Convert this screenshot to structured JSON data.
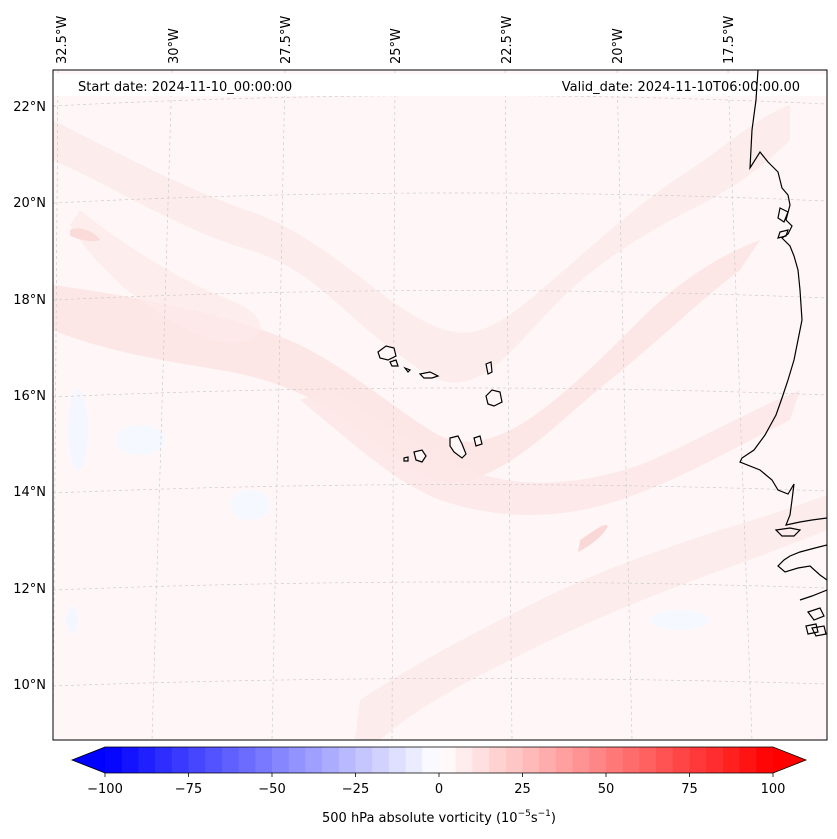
{
  "header": {
    "start_date": "Start date: 2024-11-10_00:00:00",
    "valid_date": "Valid_date: 2024-11-10T06:00:00.00"
  },
  "lon_labels": [
    "32.5°W",
    "30°W",
    "27.5°W",
    "25°W",
    "22.5°W",
    "20°W",
    "17.5°W"
  ],
  "lat_labels": [
    "22°N",
    "20°N",
    "18°N",
    "16°N",
    "14°N",
    "12°N",
    "10°N"
  ],
  "colorbar": {
    "label_main": "500 hPa absolute vorticity (10",
    "label_exp1": "−5",
    "label_mid": "s",
    "label_exp2": "−1",
    "label_end": ")",
    "ticks": [
      "−100",
      "−75",
      "−50",
      "−25",
      "0",
      "25",
      "50",
      "75",
      "100"
    ],
    "min": -100,
    "max": 100,
    "step": 5,
    "low_color": "#0000ff",
    "mid_color": "#ffffff",
    "high_color": "#ff0000"
  },
  "colors": {
    "background": "#fff7f7",
    "band_light": "#fde6e6",
    "band_faint": "#fef0f0",
    "negative_faint": "#f4f7ff",
    "coastline": "#000000",
    "grid": "#cccccc"
  }
}
